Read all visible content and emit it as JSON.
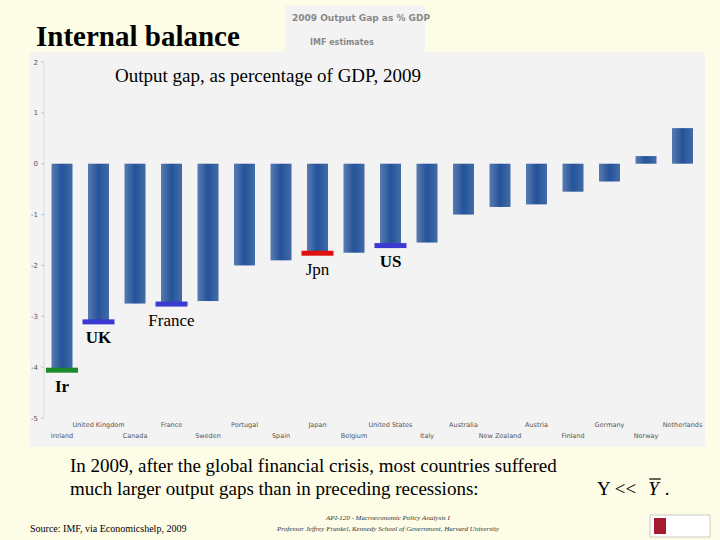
{
  "chart_data": {
    "type": "bar",
    "title": "2009 Output Gap as % GDP",
    "subtitle": "IMF estimates",
    "categories": [
      "Ireland",
      "United Kingdom",
      "Canada",
      "France",
      "Sweden",
      "Portugal",
      "Spain",
      "Japan",
      "Belgium",
      "United States",
      "Italy",
      "Australia",
      "New Zealand",
      "Austria",
      "Finland",
      "Germany",
      "Norway",
      "Netherlands"
    ],
    "values": [
      -4.05,
      -3.1,
      -2.75,
      -2.75,
      -2.7,
      -2.0,
      -1.9,
      -1.75,
      -1.75,
      -1.6,
      -1.55,
      -1.0,
      -0.85,
      -0.8,
      -0.55,
      -0.35,
      0.15,
      0.7
    ],
    "color": "#24539a",
    "ylim": [
      -5,
      2
    ],
    "yticks": [
      -5,
      -4,
      -3,
      -2,
      -1,
      0,
      1,
      2
    ],
    "grid": false,
    "annotations": [
      {
        "text": "Ir",
        "category": "Ireland",
        "color": "#1a8a2a"
      },
      {
        "text": "UK",
        "category": "United Kingdom",
        "color": "#3a3ad0"
      },
      {
        "text": "France",
        "category": "France",
        "color": "#3a3ad0"
      },
      {
        "text": "Jpn",
        "category": "Japan",
        "color": "#e01010"
      },
      {
        "text": "US",
        "category": "United States",
        "color": "#3a3ad0"
      }
    ]
  },
  "slide": {
    "heading": "Internal balance",
    "overlay_title": "Output gap, as percentage of GDP, 2009",
    "caption_lines": [
      "In 2009, after the global financial crisis, most countries suffered",
      "much larger output gaps than in preceding recessions:"
    ],
    "formula": [
      "Y <<",
      "Y",
      "."
    ],
    "source": "Source: IMF, via Economicshelp, 2009",
    "footer": [
      "API-120 - Macroeconomic Policy Analysis I",
      "Professor Jeffrey Frankel, Kennedy School of Government, Harvard University"
    ]
  }
}
